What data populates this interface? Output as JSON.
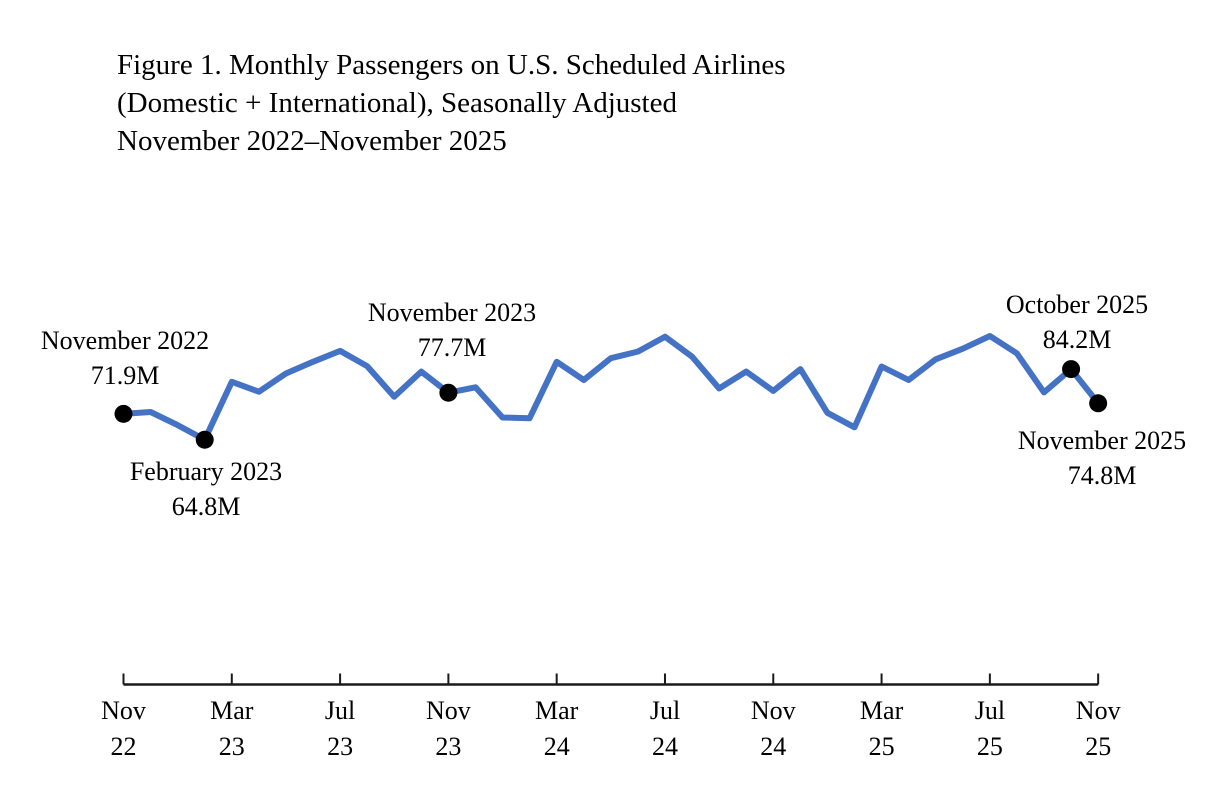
{
  "figure": {
    "title_lines": [
      "Figure 1. Monthly Passengers on U.S. Scheduled Airlines",
      "(Domestic + International), Seasonally Adjusted",
      "November 2022–November 2025"
    ]
  },
  "colors": {
    "line": "#4472C4",
    "marker": "#000000",
    "axis": "#1a1a1a",
    "text": "#000000",
    "background": "#ffffff"
  },
  "chart_data": {
    "type": "line",
    "title": "Figure 1. Monthly Passengers on U.S. Scheduled Airlines (Domestic + International), Seasonally Adjusted, November 2022–November 2025",
    "unit": "millions of passengers",
    "x": [
      "Nov 2022",
      "Dec 2022",
      "Jan 2023",
      "Feb 2023",
      "Mar 2023",
      "Apr 2023",
      "May 2023",
      "Jun 2023",
      "Jul 2023",
      "Aug 2023",
      "Sep 2023",
      "Oct 2023",
      "Nov 2023",
      "Dec 2023",
      "Jan 2024",
      "Feb 2024",
      "Mar 2024",
      "Apr 2024",
      "May 2024",
      "Jun 2024",
      "Jul 2024",
      "Aug 2024",
      "Sep 2024",
      "Oct 2024",
      "Nov 2024",
      "Dec 2024",
      "Jan 2025",
      "Feb 2025",
      "Mar 2025",
      "Apr 2025",
      "May 2025",
      "Jun 2025",
      "Jul 2025",
      "Aug 2025",
      "Sep 2025",
      "Oct 2025",
      "Nov 2025"
    ],
    "values": [
      71.9,
      72.4,
      68.8,
      64.8,
      80.7,
      78.0,
      83.0,
      86.2,
      89.2,
      85.0,
      76.6,
      83.5,
      77.7,
      79.2,
      70.9,
      70.7,
      86.2,
      81.2,
      87.2,
      89.0,
      93.1,
      87.6,
      78.9,
      83.5,
      78.2,
      84.2,
      72.2,
      68.2,
      84.9,
      81.2,
      86.9,
      89.8,
      93.3,
      88.5,
      77.8,
      84.2,
      74.8
    ],
    "tick_labels": [
      {
        "month": "Nov",
        "year": "22"
      },
      {
        "month": "Mar",
        "year": "23"
      },
      {
        "month": "Jul",
        "year": "23"
      },
      {
        "month": "Nov",
        "year": "23"
      },
      {
        "month": "Mar",
        "year": "24"
      },
      {
        "month": "Jul",
        "year": "24"
      },
      {
        "month": "Nov",
        "year": "24"
      },
      {
        "month": "Mar",
        "year": "25"
      },
      {
        "month": "Jul",
        "year": "25"
      },
      {
        "month": "Nov",
        "year": "25"
      }
    ],
    "annotations": [
      {
        "month": "November 2022",
        "value_label": "71.9M",
        "month_index": 0,
        "value": 71.9
      },
      {
        "month": "February 2023",
        "value_label": "64.8M",
        "month_index": 3,
        "value": 64.8
      },
      {
        "month": "November 2023",
        "value_label": "77.7M",
        "month_index": 12,
        "value": 77.7
      },
      {
        "month": "October 2025",
        "value_label": "84.2M",
        "month_index": 35,
        "value": 84.2
      },
      {
        "month": "November 2025",
        "value_label": "74.8M",
        "month_index": 36,
        "value": 74.8
      }
    ],
    "y_axis_visible": false,
    "grid": false,
    "legend": null,
    "ylim": [
      60,
      97
    ]
  }
}
